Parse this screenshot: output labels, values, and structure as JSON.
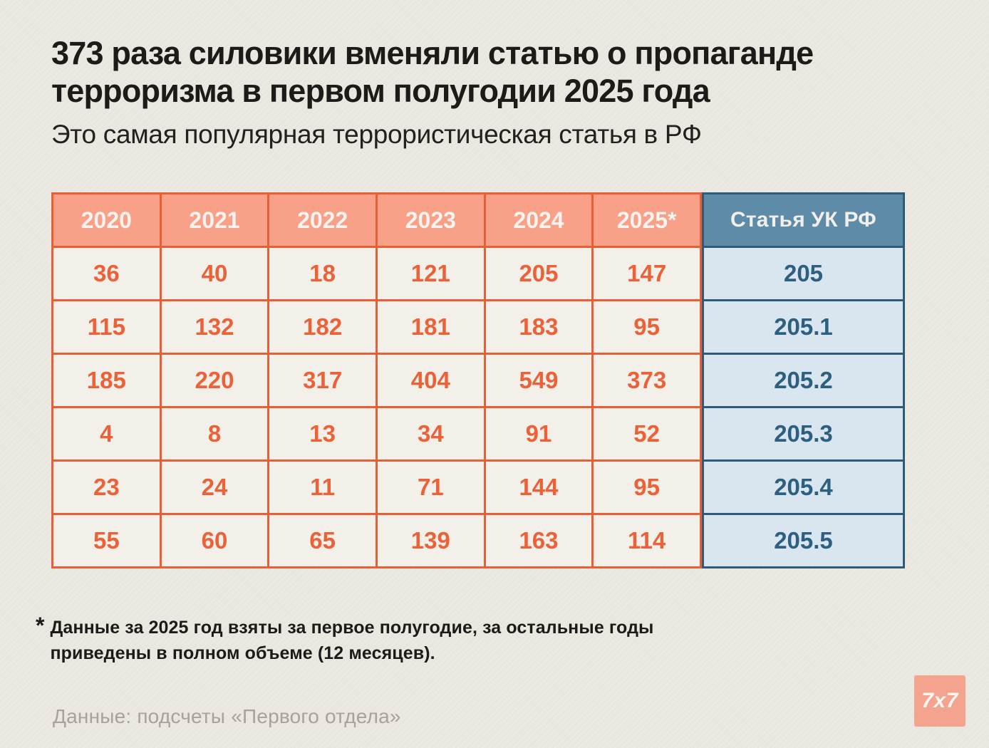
{
  "page": {
    "background": "#EDE9E3"
  },
  "header": {
    "title_line1": "373 раза силовики вменяли статью о пропаганде",
    "title_line2": "терроризма в первом полугодии 2025 года",
    "subtitle": "Это самая популярная террористическая статья в РФ"
  },
  "chart_data": {
    "type": "table",
    "title": "373 раза силовики вменяли статью о пропаганде терроризма в первом полугодии 2025 года",
    "subtitle": "Это самая популярная террористическая статья в РФ",
    "columns": [
      "2020",
      "2021",
      "2022",
      "2023",
      "2024",
      "2025*"
    ],
    "row_label_column": "Статья УК РФ",
    "series": [
      {
        "article": "205",
        "values": [
          36,
          40,
          18,
          121,
          205,
          147
        ]
      },
      {
        "article": "205.1",
        "values": [
          115,
          132,
          182,
          181,
          183,
          95
        ]
      },
      {
        "article": "205.2",
        "values": [
          185,
          220,
          317,
          404,
          549,
          373
        ]
      },
      {
        "article": "205.3",
        "values": [
          4,
          8,
          13,
          34,
          91,
          52
        ]
      },
      {
        "article": "205.4",
        "values": [
          23,
          24,
          11,
          71,
          144,
          95
        ]
      },
      {
        "article": "205.5",
        "values": [
          55,
          60,
          65,
          139,
          163,
          114
        ]
      }
    ],
    "colors": {
      "year_header_bg": "#F9A088",
      "year_border": "#E85F35",
      "value_text": "#EC6137",
      "cell_bg": "#F3F0EA",
      "article_header_bg": "#5D8BA8",
      "article_border": "#2D5C7B",
      "article_cell_bg": "#D9E6EF",
      "article_text": "#2D5F80"
    }
  },
  "footnote": {
    "marker": "*",
    "text": "Данные за 2025 год взяты за первое полугодие, за остальные годы приведены в полном объеме (12 месяцев)."
  },
  "source": {
    "text": "Данные: подсчеты «Первого отдела»"
  },
  "logo": {
    "label": "7x7",
    "background": "#F4A48E"
  }
}
